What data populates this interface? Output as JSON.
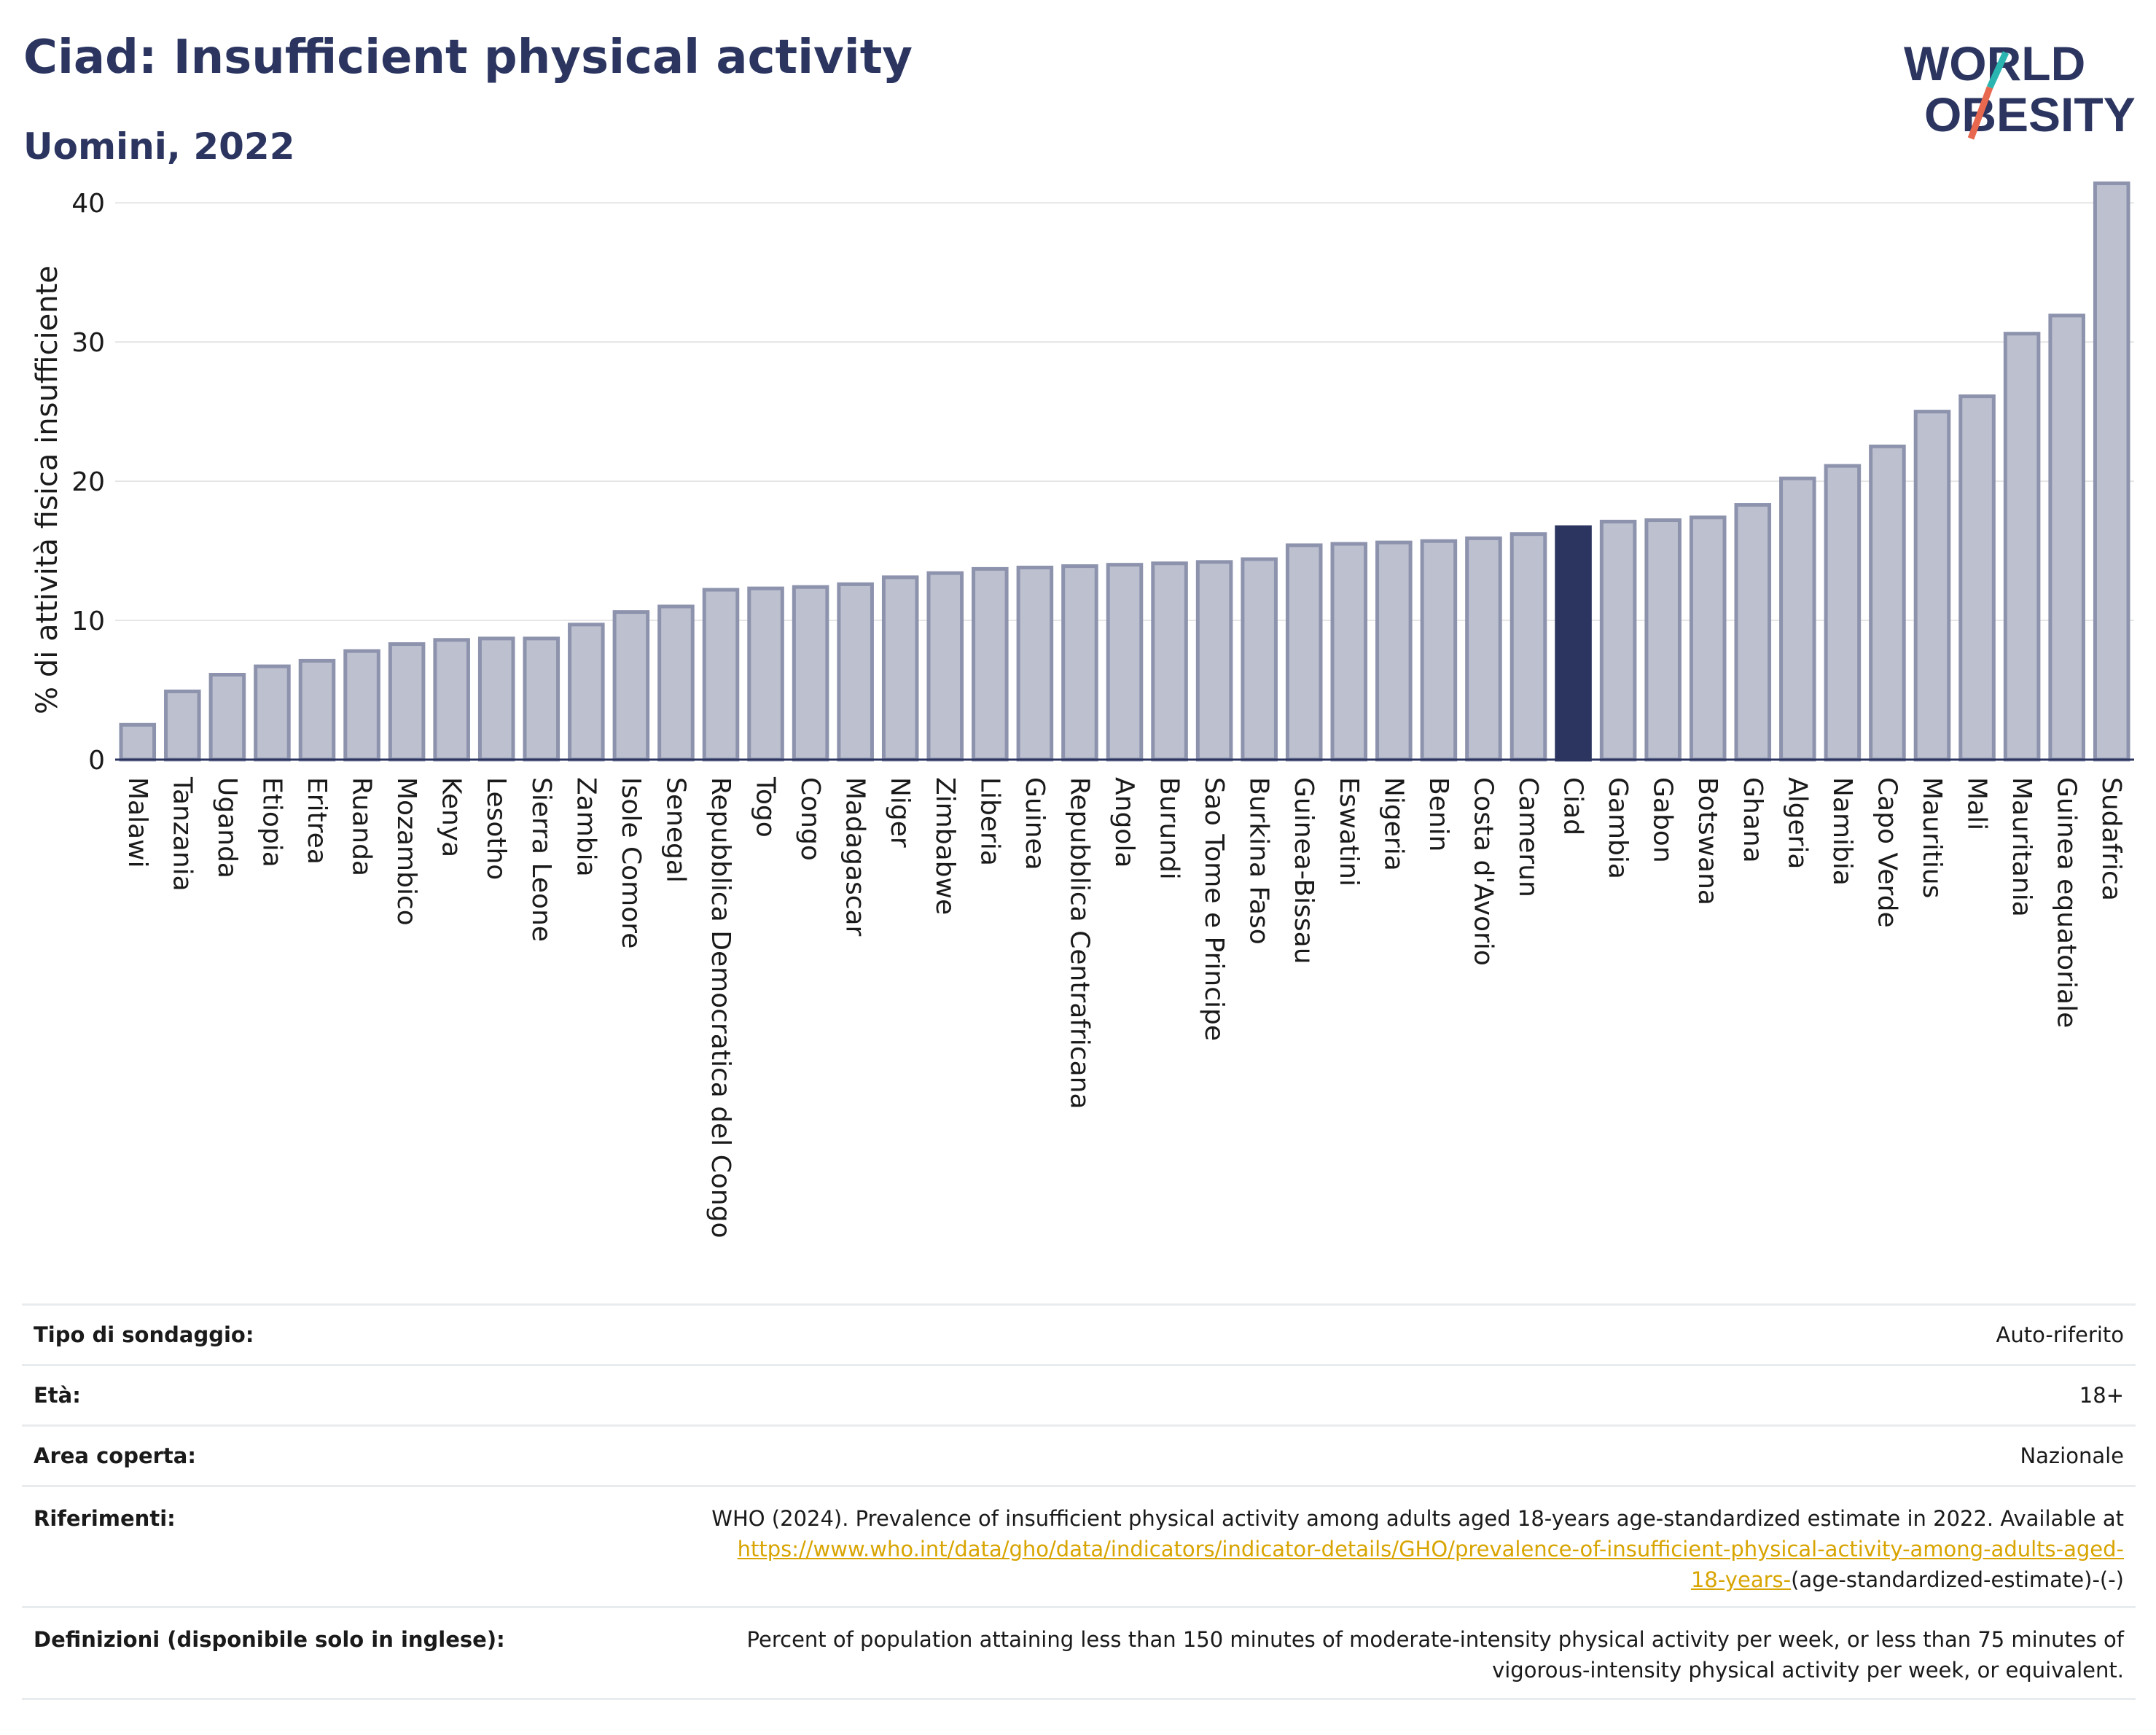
{
  "title": "Ciad: Insufficient physical activity",
  "subtitle": "Uomini, 2022",
  "logo": {
    "line1": "WORLD",
    "line2": "OBESITY",
    "accent_colors": [
      "#2bb5b0",
      "#e8674f"
    ]
  },
  "colors": {
    "bar": "#bcc0cf",
    "bar_border": "#8d93ad",
    "highlight": "#2b3560",
    "grid": "#e6e6e6",
    "axis": "#2b3560"
  },
  "chart_data": {
    "type": "bar",
    "ylabel": "% di attività fisica insufficiente",
    "ylim": [
      0,
      42
    ],
    "yticks": [
      0,
      10,
      20,
      30,
      40
    ],
    "highlight": "Ciad",
    "categories": [
      "Malawi",
      "Tanzania",
      "Uganda",
      "Etiopia",
      "Eritrea",
      "Ruanda",
      "Mozambico",
      "Kenya",
      "Lesotho",
      "Sierra Leone",
      "Zambia",
      "Isole Comore",
      "Senegal",
      "Repubblica Democratica del Congo",
      "Togo",
      "Congo",
      "Madagascar",
      "Niger",
      "Zimbabwe",
      "Liberia",
      "Guinea",
      "Repubblica Centrafricana",
      "Angola",
      "Burundi",
      "Sao Tome e Principe",
      "Burkina Faso",
      "Guinea-Bissau",
      "Eswatini",
      "Nigeria",
      "Benin",
      "Costa d'Avorio",
      "Camerun",
      "Ciad",
      "Gambia",
      "Gabon",
      "Botswana",
      "Ghana",
      "Algeria",
      "Namibia",
      "Capo Verde",
      "Mauritius",
      "Mali",
      "Mauritania",
      "Guinea equatoriale",
      "Sudafrica"
    ],
    "values": [
      2.5,
      4.9,
      6.1,
      6.7,
      7.1,
      7.8,
      8.3,
      8.6,
      8.7,
      8.7,
      9.7,
      10.6,
      11.0,
      12.2,
      12.3,
      12.4,
      12.6,
      13.1,
      13.4,
      13.7,
      13.8,
      13.9,
      14.0,
      14.1,
      14.2,
      14.4,
      15.4,
      15.5,
      15.6,
      15.7,
      15.9,
      16.2,
      16.7,
      17.1,
      17.2,
      17.4,
      18.3,
      20.2,
      21.1,
      22.5,
      25.0,
      26.1,
      30.6,
      31.9,
      41.4
    ]
  },
  "info": {
    "survey_label": "Tipo di sondaggio:",
    "survey_value": "Auto-riferito",
    "age_label": "Età:",
    "age_value": "18+",
    "area_label": "Area coperta:",
    "area_value": "Nazionale",
    "ref_label": "Riferimenti:",
    "ref_text": "WHO (2024). Prevalence of insufficient physical activity among adults aged 18-years age-standardized estimate in 2022. Available at",
    "ref_link_a": "https://www.who.int/data/gho/data/indicators/indicator-details/GHO/prevalence-of-insufficient-physical-activity-among-adults-aged-",
    "ref_link_b": "18-years-",
    "ref_tail": "(age-standardized-estimate)-(-)",
    "def_label": "Definizioni (disponibile solo in inglese):",
    "def_line1": "Percent of population attaining less than 150 minutes of moderate-intensity physical activity per week, or less than 75 minutes of",
    "def_line2": "vigorous-intensity physical activity per week, or equivalent."
  }
}
